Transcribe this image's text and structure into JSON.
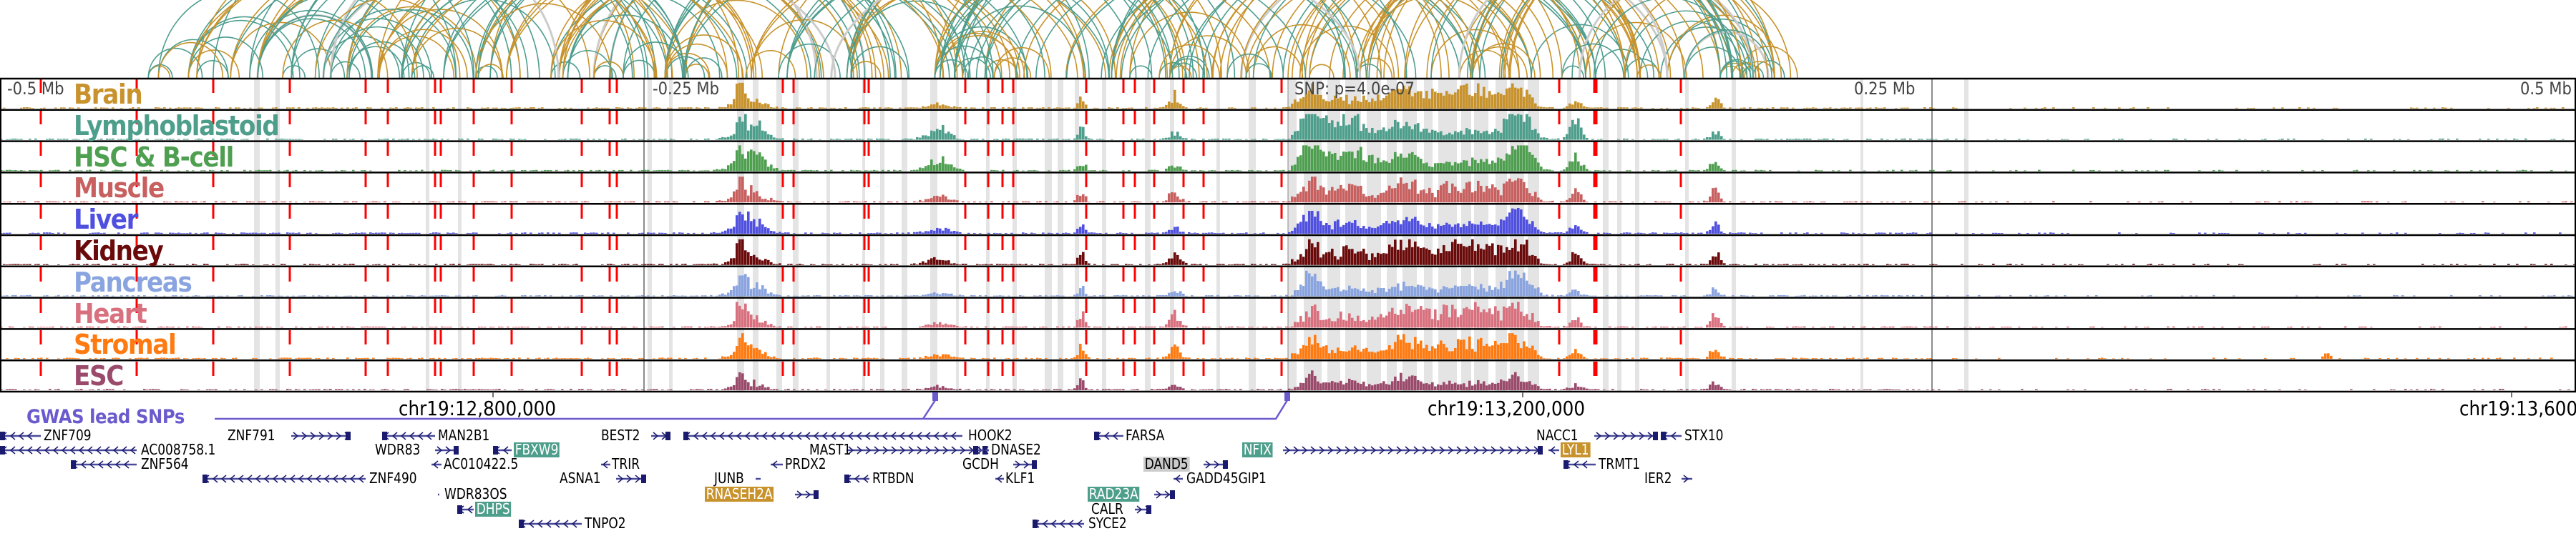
{
  "axis": {
    "left_label": "-0.5 Mb",
    "left_mid_label": "-0.25 Mb",
    "snp_label": "SNP: p=4.0e-07",
    "right_mid_label": "0.25 Mb",
    "right_label": "0.5 Mb"
  },
  "tracks": [
    {
      "label": "Brain",
      "color": "#c8922c"
    },
    {
      "label": "Lymphoblastoid",
      "color": "#4e9e8c"
    },
    {
      "label": "HSC & B-cell",
      "color": "#4f9f50"
    },
    {
      "label": "Muscle",
      "color": "#c86060"
    },
    {
      "label": "Liver",
      "color": "#4f4fe0"
    },
    {
      "label": "Kidney",
      "color": "#6b0a0a"
    },
    {
      "label": "Pancreas",
      "color": "#8aa4e0"
    },
    {
      "label": "Heart",
      "color": "#d9707e"
    },
    {
      "label": "Stromal",
      "color": "#ff7a10"
    },
    {
      "label": "ESC",
      "color": "#9a4a6a"
    }
  ],
  "arc_colors": {
    "primary": "#4e9e8f",
    "secondary": "#c8932c",
    "highlight": "#cccccc"
  },
  "marker_color": "#ff0000",
  "gwas": {
    "label": "GWAS lead SNPs",
    "color": "#6a5acd"
  },
  "chromosome_ticks": [
    {
      "label": "chr19:12,800,000"
    },
    {
      "label": "chr19:13,200,000"
    },
    {
      "label": "chr19:13,600,000"
    }
  ],
  "genes": [
    {
      "name": "ZNF709",
      "strand": "-"
    },
    {
      "name": "ZNF791",
      "strand": "+"
    },
    {
      "name": "MAN2B1",
      "strand": "-"
    },
    {
      "name": "BEST2",
      "strand": "+"
    },
    {
      "name": "HOOK2",
      "strand": "-"
    },
    {
      "name": "FARSA",
      "strand": "-"
    },
    {
      "name": "NACC1",
      "strand": "+"
    },
    {
      "name": "STX10",
      "strand": "-"
    },
    {
      "name": "AC008758.1",
      "strand": "-"
    },
    {
      "name": "WDR83",
      "strand": "+"
    },
    {
      "name": "FBXW9",
      "strand": "-",
      "highlight": "#4e9e8c"
    },
    {
      "name": "MAST1",
      "strand": "+"
    },
    {
      "name": "DNASE2",
      "strand": "-"
    },
    {
      "name": "NFIX",
      "strand": "+",
      "highlight": "#4e9e8c"
    },
    {
      "name": "LYL1",
      "strand": "-",
      "highlight": "#c8922c"
    },
    {
      "name": "ZNF564",
      "strand": "-"
    },
    {
      "name": "AC010422.5",
      "strand": "-"
    },
    {
      "name": "TRIR",
      "strand": "-"
    },
    {
      "name": "PRDX2",
      "strand": "-"
    },
    {
      "name": "GCDH",
      "strand": "+"
    },
    {
      "name": "DAND5",
      "strand": "+",
      "highlight": "#cccccc"
    },
    {
      "name": "TRMT1",
      "strand": "-"
    },
    {
      "name": "ZNF490",
      "strand": "-"
    },
    {
      "name": "ASNA1",
      "strand": "+"
    },
    {
      "name": "JUNB",
      "strand": "+"
    },
    {
      "name": "RTBDN",
      "strand": "-"
    },
    {
      "name": "KLF1",
      "strand": "-"
    },
    {
      "name": "GADD45GIP1",
      "strand": "-"
    },
    {
      "name": "IER2",
      "strand": "+"
    },
    {
      "name": "WDR83OS",
      "strand": "-"
    },
    {
      "name": "RNASEH2A",
      "strand": "+",
      "highlight": "#c8922c"
    },
    {
      "name": "RAD23A",
      "strand": "+",
      "highlight": "#4e9e8c"
    },
    {
      "name": "DHPS",
      "strand": "-",
      "highlight": "#4e9e8c"
    },
    {
      "name": "CALR",
      "strand": "+"
    },
    {
      "name": "TNPO2",
      "strand": "-"
    },
    {
      "name": "SYCE2",
      "strand": "-"
    }
  ]
}
